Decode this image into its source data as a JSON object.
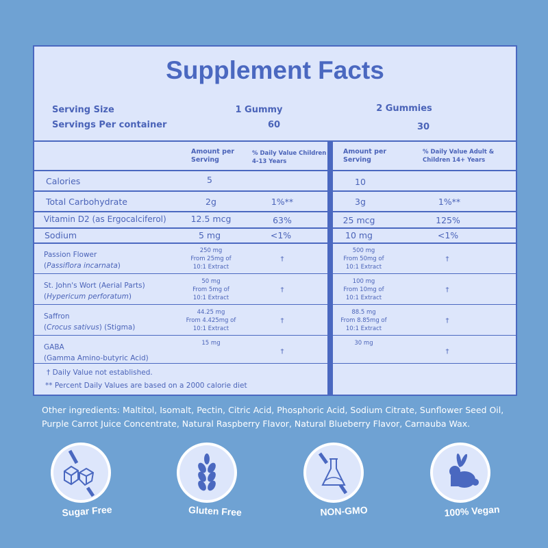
{
  "title": "Supplement Facts",
  "serving": {
    "size_label": "Serving Size",
    "per_container_label": "Servings Per container",
    "col1_size": "1 Gummy",
    "col1_servings": "60",
    "col2_size": "2 Gummies",
    "col2_servings": "30"
  },
  "headers": {
    "amount": "Amount per Serving",
    "dv_children": "% Daily Value Children 4-13 Years",
    "dv_adult": "% Daily Value Adult & Children 14+ Years"
  },
  "rows": [
    {
      "name": "Calories",
      "a1": "5",
      "d1": "",
      "a2": "10",
      "d2": ""
    },
    {
      "name": "Total Carbohydrate",
      "a1": "2g",
      "d1": "1%**",
      "a2": "3g",
      "d2": "1%**"
    },
    {
      "name": "Vitamin D2 (as Ergocalciferol)",
      "a1": "12.5 mcg",
      "d1": "63%",
      "a2": "25 mcg",
      "d2": "125%"
    },
    {
      "name": "Sodium",
      "a1": "5 mg",
      "d1": "<1%",
      "a2": "10 mg",
      "d2": "<1%"
    }
  ],
  "herbs": [
    {
      "name": "Passion Flower",
      "latin": "Passiflora incarnata",
      "suffix": "",
      "a1": [
        "250 mg",
        "From 25mg of",
        "10:1 Extract"
      ],
      "d1": "†",
      "a2": [
        "500 mg",
        "From 50mg of",
        "10:1 Extract"
      ],
      "d2": "†"
    },
    {
      "name": "St. John's Wort (Aerial Parts)",
      "latin": "Hypericum perforatum",
      "suffix": "",
      "a1": [
        "50 mg",
        "From 5mg of",
        "10:1 Extract"
      ],
      "d1": "†",
      "a2": [
        "100 mg",
        "From 10mg of",
        "10:1 Extract"
      ],
      "d2": "†"
    },
    {
      "name": "Saffron",
      "latin": "Crocus sativus",
      "suffix": " (Stigma)",
      "a1": [
        "44.25 mg",
        "From 4.425mg of",
        "10:1 Extract"
      ],
      "d1": "†",
      "a2": [
        "88.5 mg",
        "From 8.85mg of",
        "10:1 Extract"
      ],
      "d2": "†"
    },
    {
      "name": "GABA",
      "latin": "",
      "second": "(Gamma Amino-butyric Acid)",
      "a1": [
        "15 mg"
      ],
      "d1": "†",
      "a2": [
        "30 mg"
      ],
      "d2": "†"
    }
  ],
  "footnotes": [
    "† Daily Value not established.",
    "** Percent Daily Values are based on a 2000 calorie diet"
  ],
  "other_ingredients": "Other ingredients: Maltitol, Isomalt, Pectin, Citric Acid, Phosphoric Acid, Sodium Citrate, Sunflower Seed Oil, Purple Carrot Juice Concentrate, Natural Raspberry Flavor, Natural Blueberry Flavor, Carnauba Wax.",
  "badges": [
    {
      "label": "Sugar Free",
      "icon": "sugar-cubes-crossed-icon"
    },
    {
      "label": "Gluten Free",
      "icon": "wheat-icon"
    },
    {
      "label": "NON-GMO",
      "icon": "flask-crossed-icon"
    },
    {
      "label": "100% Vegan",
      "icon": "rabbit-icon"
    }
  ],
  "colors": {
    "background": "#6fa2d3",
    "panel": "#dde6fb",
    "accent": "#4a68c0"
  }
}
